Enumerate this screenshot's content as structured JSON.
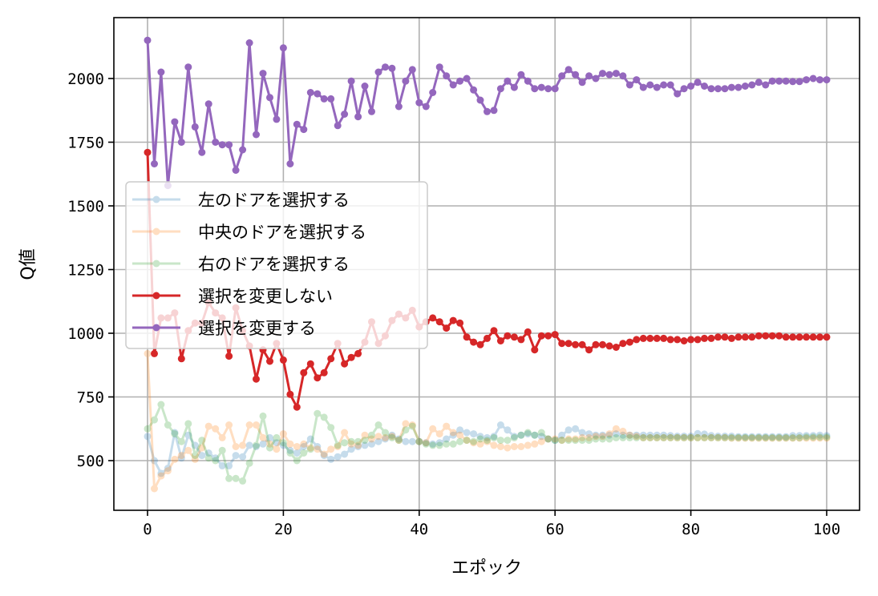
{
  "chart_data": {
    "type": "line",
    "title": "",
    "xlabel": "エポック",
    "ylabel": "Q値",
    "xlim": [
      -5,
      105
    ],
    "ylim": [
      310,
      2235
    ],
    "xticks": [
      0,
      20,
      40,
      60,
      80,
      100
    ],
    "xtick_labels": [
      "0",
      "20",
      "40",
      "60",
      "80",
      "100"
    ],
    "yticks": [
      500,
      750,
      1000,
      1250,
      1500,
      1750,
      2000
    ],
    "ytick_labels": [
      "500",
      "750",
      "1000",
      "1250",
      "1500",
      "1750",
      "2000"
    ],
    "grid": true,
    "legend_position": "center left",
    "x": [
      0,
      1,
      2,
      3,
      4,
      5,
      6,
      7,
      8,
      9,
      10,
      11,
      12,
      13,
      14,
      15,
      16,
      17,
      18,
      19,
      20,
      21,
      22,
      23,
      24,
      25,
      26,
      27,
      28,
      29,
      30,
      31,
      32,
      33,
      34,
      35,
      36,
      37,
      38,
      39,
      40,
      41,
      42,
      43,
      44,
      45,
      46,
      47,
      48,
      49,
      50,
      51,
      52,
      53,
      54,
      55,
      56,
      57,
      58,
      59,
      60,
      61,
      62,
      63,
      64,
      65,
      66,
      67,
      68,
      69,
      70,
      71,
      72,
      73,
      74,
      75,
      76,
      77,
      78,
      79,
      80,
      81,
      82,
      83,
      84,
      85,
      86,
      87,
      88,
      89,
      90,
      91,
      92,
      93,
      94,
      95,
      96,
      97,
      98,
      99,
      100
    ],
    "series": [
      {
        "name": "左のドアを選択する",
        "color": "#1f77b4",
        "alpha": 0.25,
        "values": [
          595,
          500,
          450,
          470,
          610,
          510,
          600,
          560,
          520,
          530,
          510,
          480,
          480,
          520,
          515,
          560,
          555,
          565,
          590,
          570,
          560,
          540,
          530,
          555,
          585,
          555,
          520,
          505,
          515,
          525,
          545,
          555,
          560,
          565,
          575,
          585,
          600,
          585,
          575,
          575,
          575,
          570,
          565,
          570,
          585,
          600,
          620,
          610,
          605,
          595,
          590,
          595,
          640,
          620,
          595,
          600,
          605,
          600,
          595,
          585,
          580,
          600,
          620,
          625,
          610,
          605,
          600,
          600,
          600,
          605,
          600,
          600,
          600,
          600,
          600,
          600,
          600,
          598,
          596,
          596,
          596,
          606,
          604,
          598,
          596,
          596,
          596,
          594,
          594,
          594,
          594,
          594,
          594,
          594,
          594,
          598,
          598,
          598,
          598,
          600,
          598
        ]
      },
      {
        "name": "中央のドアを選択する",
        "color": "#ff7f0e",
        "alpha": 0.25,
        "values": [
          920,
          390,
          440,
          460,
          505,
          520,
          540,
          505,
          550,
          635,
          625,
          590,
          640,
          555,
          560,
          640,
          640,
          590,
          565,
          545,
          605,
          565,
          555,
          565,
          550,
          545,
          525,
          545,
          555,
          610,
          565,
          560,
          600,
          585,
          595,
          590,
          595,
          580,
          645,
          640,
          575,
          570,
          625,
          605,
          635,
          610,
          600,
          580,
          570,
          565,
          575,
          560,
          555,
          550,
          555,
          555,
          560,
          565,
          575,
          585,
          585,
          580,
          585,
          585,
          590,
          590,
          595,
          595,
          605,
          625,
          615,
          600,
          595,
          590,
          590,
          590,
          590,
          590,
          590,
          590,
          590,
          590,
          590,
          590,
          590,
          590,
          588,
          588,
          588,
          588,
          588,
          588,
          588,
          588,
          588,
          588,
          588,
          588,
          588,
          588,
          588
        ]
      },
      {
        "name": "右のドアを選択する",
        "color": "#2ca02c",
        "alpha": 0.25,
        "values": [
          625,
          660,
          720,
          640,
          605,
          575,
          645,
          520,
          580,
          510,
          500,
          540,
          430,
          430,
          420,
          490,
          560,
          675,
          550,
          590,
          570,
          530,
          500,
          530,
          545,
          685,
          670,
          630,
          560,
          570,
          575,
          575,
          580,
          600,
          640,
          610,
          590,
          580,
          620,
          635,
          575,
          565,
          560,
          560,
          565,
          565,
          575,
          580,
          575,
          585,
          580,
          590,
          580,
          580,
          590,
          600,
          610,
          600,
          610,
          585,
          580,
          580,
          580,
          580,
          580,
          580,
          585,
          585,
          585,
          590,
          590,
          590,
          590,
          590,
          590,
          590,
          590,
          590,
          590,
          590,
          590,
          590,
          590,
          590,
          590,
          590,
          590,
          590,
          590,
          590,
          590,
          590,
          590,
          590,
          590,
          590,
          590,
          592,
          592,
          592,
          592
        ]
      },
      {
        "name": "選択を変更しない",
        "color": "#d62728",
        "alpha": 1.0,
        "values": [
          1710,
          920,
          1060,
          1060,
          1080,
          900,
          1010,
          1040,
          1040,
          1120,
          1080,
          1060,
          910,
          1100,
          1010,
          950,
          820,
          935,
          890,
          960,
          895,
          760,
          710,
          845,
          880,
          825,
          845,
          900,
          960,
          880,
          905,
          920,
          965,
          1045,
          960,
          990,
          1050,
          1075,
          1060,
          1090,
          1025,
          1045,
          1060,
          1045,
          1020,
          1050,
          1040,
          985,
          965,
          955,
          980,
          1010,
          970,
          990,
          985,
          975,
          1005,
          935,
          990,
          990,
          995,
          960,
          960,
          955,
          955,
          935,
          955,
          955,
          950,
          945,
          960,
          965,
          975,
          980,
          980,
          980,
          980,
          975,
          975,
          970,
          975,
          975,
          980,
          980,
          985,
          985,
          980,
          985,
          985,
          985,
          990,
          990,
          990,
          990,
          985,
          985,
          985,
          985,
          985,
          985,
          985
        ]
      },
      {
        "name": "選択を変更する",
        "color": "#9467bd",
        "alpha": 1.0,
        "values": [
          2150,
          1665,
          2025,
          1580,
          1830,
          1750,
          2045,
          1810,
          1710,
          1900,
          1750,
          1740,
          1740,
          1640,
          1720,
          2140,
          1780,
          2020,
          1925,
          1840,
          2120,
          1665,
          1820,
          1800,
          1945,
          1940,
          1920,
          1920,
          1815,
          1860,
          1990,
          1850,
          1970,
          1870,
          2025,
          2045,
          2040,
          1890,
          1990,
          2035,
          1905,
          1890,
          1945,
          2045,
          2010,
          1975,
          1990,
          2000,
          1955,
          1915,
          1870,
          1875,
          1960,
          1990,
          1965,
          2015,
          1990,
          1960,
          1965,
          1960,
          1960,
          2010,
          2035,
          2015,
          1985,
          2010,
          2000,
          2020,
          2015,
          2020,
          2010,
          1975,
          1995,
          1965,
          1975,
          1965,
          1975,
          1975,
          1940,
          1960,
          1970,
          1985,
          1970,
          1960,
          1960,
          1960,
          1965,
          1965,
          1970,
          1975,
          1985,
          1975,
          1990,
          1990,
          1990,
          1988,
          1988,
          1995,
          2000,
          1995,
          1995
        ]
      }
    ]
  },
  "legend": {
    "items": [
      {
        "label": "左のドアを選択する",
        "color": "#1f77b4",
        "alpha": 0.25
      },
      {
        "label": "中央のドアを選択する",
        "color": "#ff7f0e",
        "alpha": 0.25
      },
      {
        "label": "右のドアを選択する",
        "color": "#2ca02c",
        "alpha": 0.25
      },
      {
        "label": "選択を変更しない",
        "color": "#d62728",
        "alpha": 1.0
      },
      {
        "label": "選択を変更する",
        "color": "#9467bd",
        "alpha": 1.0
      }
    ]
  }
}
